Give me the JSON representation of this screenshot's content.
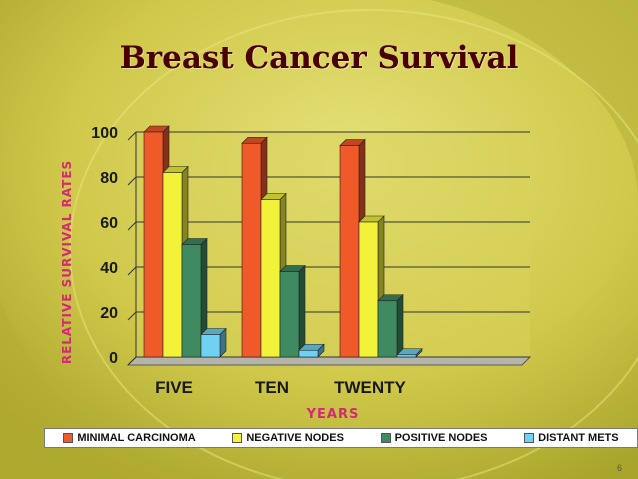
{
  "slide": {
    "page_number": "6"
  },
  "chart_data": {
    "type": "bar",
    "title": "Breast Cancer Survival",
    "xlabel": "YEARS",
    "ylabel": "RELATIVE SURVIVAL RATES",
    "categories": [
      "FIVE",
      "TEN",
      "TWENTY"
    ],
    "ylim": [
      0,
      100
    ],
    "yticks": [
      0,
      20,
      40,
      60,
      80,
      100
    ],
    "grid": true,
    "legend_position": "bottom",
    "series": [
      {
        "name": "MINIMAL CARCINOMA",
        "color": "#f05a28",
        "values": [
          100,
          95,
          94
        ]
      },
      {
        "name": "NEGATIVE NODES",
        "color": "#f2f23a",
        "values": [
          82,
          70,
          60
        ]
      },
      {
        "name": "POSITIVE NODES",
        "color": "#3f8a60",
        "values": [
          50,
          38,
          25
        ]
      },
      {
        "name": "DISTANT METS",
        "color": "#6fd2f2",
        "values": [
          10,
          3,
          1
        ]
      }
    ],
    "colors": {
      "axis_text": "#1a1a1a",
      "title": "#4a0000",
      "ylabel": "#d42a73",
      "xlabel": "#d42a73",
      "plot_background": "#d8d25a"
    }
  }
}
